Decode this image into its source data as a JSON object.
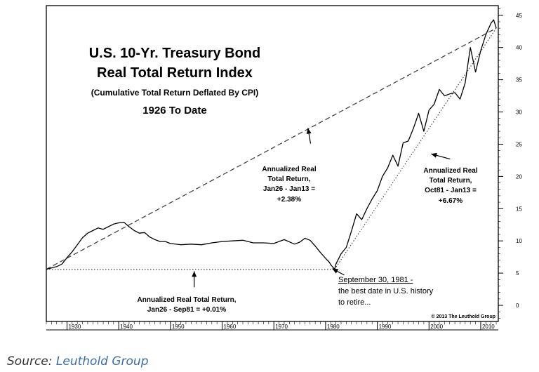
{
  "colors": {
    "line": "#000000",
    "axis": "#000000",
    "source_link": "#3a6ea8",
    "background": "#ffffff"
  },
  "chart_data": {
    "type": "line",
    "title_lines": [
      "U.S. 10-Yr. Treasury Bond",
      "Real Total Return Index"
    ],
    "subtitle": "(Cumulative Total Return Deflated By CPI)",
    "date_range": "1926 To Date",
    "x_ticks": [
      "1930",
      "1940",
      "1950",
      "1960",
      "1970",
      "1980",
      "1990",
      "2000",
      "2010"
    ],
    "x_tick_values": [
      1930,
      1940,
      1950,
      1960,
      1970,
      1980,
      1990,
      2000,
      2010
    ],
    "y_ticks": [
      "0",
      "5",
      "10",
      "15",
      "20",
      "25",
      "30",
      "35",
      "40",
      "45"
    ],
    "y_tick_values": [
      0,
      5,
      10,
      15,
      20,
      25,
      30,
      35,
      40,
      45
    ],
    "xlim": [
      1926,
      2013.4
    ],
    "ylim": [
      -2.5,
      46.5
    ],
    "grid": false,
    "series": [
      {
        "x": [
          1926,
          1927,
          1928,
          1929,
          1930,
          1931,
          1932,
          1933,
          1934,
          1935,
          1936,
          1937,
          1938,
          1939,
          1940,
          1941,
          1942,
          1943,
          1944,
          1945,
          1946,
          1947,
          1948,
          1949,
          1950,
          1952,
          1954,
          1956,
          1958,
          1960,
          1962,
          1964,
          1966,
          1968,
          1970,
          1972,
          1974,
          1975,
          1976,
          1977,
          1978,
          1979,
          1980,
          1980.7,
          1981,
          1981.75,
          1982,
          1983,
          1984,
          1985,
          1986,
          1987,
          1988,
          1989,
          1990,
          1991,
          1992,
          1993,
          1994,
          1995,
          1996,
          1997,
          1998,
          1999,
          2000,
          2001,
          2002,
          2003,
          2004,
          2005,
          2006,
          2007,
          2008,
          2009,
          2010,
          2011,
          2012,
          2012.5,
          2013
        ],
        "y": [
          5.6,
          5.8,
          6.0,
          6.4,
          7.4,
          8.3,
          9.4,
          10.5,
          11.2,
          11.6,
          12.0,
          11.8,
          12.2,
          12.6,
          12.8,
          12.9,
          12.2,
          11.6,
          11.2,
          11.3,
          10.6,
          10.2,
          9.9,
          9.9,
          9.6,
          9.4,
          9.5,
          9.4,
          9.7,
          9.9,
          10.0,
          10.1,
          9.7,
          9.7,
          9.6,
          10.2,
          9.5,
          9.8,
          10.4,
          10.1,
          9.2,
          8.2,
          7.3,
          6.7,
          6.3,
          5.6,
          6.4,
          8.0,
          9.0,
          11.5,
          14.2,
          13.3,
          15.0,
          16.5,
          17.8,
          20.0,
          21.3,
          23.3,
          21.6,
          25.2,
          25.5,
          27.5,
          29.8,
          27.0,
          30.3,
          31.2,
          33.5,
          32.5,
          32.8,
          33.0,
          32.0,
          34.5,
          40.0,
          36.2,
          39.5,
          42.0,
          43.8,
          44.3,
          43.0
        ]
      }
    ],
    "trend_lines": [
      {
        "x": [
          1926,
          2013
        ],
        "y": [
          5.6,
          43.0
        ],
        "style": "dashed"
      },
      {
        "x": [
          1926,
          1981.75
        ],
        "y": [
          5.6,
          5.6
        ],
        "style": "dotted"
      },
      {
        "x": [
          1981.75,
          2013
        ],
        "y": [
          5.6,
          43.0
        ],
        "style": "dotted"
      }
    ],
    "annotations": [
      {
        "id": "total",
        "lines": [
          "Annualized Real",
          "Total Return,",
          "Jan26 - Jan13 =",
          "+2.38%"
        ],
        "arrow": {
          "from": [
            1977.1,
            25.1
          ],
          "to": [
            1976.6,
            27.5
          ]
        }
      },
      {
        "id": "recent",
        "lines": [
          "Annualized Real",
          "Total Return,",
          "Oct81 - Jan13 =",
          "+6.67%"
        ],
        "arrow": {
          "from": [
            2004.1,
            22.7
          ],
          "to": [
            2000.4,
            23.5
          ]
        }
      },
      {
        "id": "early",
        "lines": [
          "Annualized Real Total Return,",
          "Jan26 - Sep81 = +0.01%"
        ],
        "arrow": {
          "from": [
            1954.6,
            2.8
          ],
          "to": [
            1954.6,
            5.3
          ]
        }
      },
      {
        "id": "retire",
        "lines": [
          "September 30, 1981 -",
          "the best date in U.S. history",
          "to retire..."
        ],
        "arrow": {
          "from": [
            1983.6,
            4.7
          ],
          "to": [
            1981.3,
            5.7
          ]
        }
      }
    ],
    "copyright": "© 2013 The Leuthold Group"
  },
  "source": {
    "label": "Source:",
    "link_text": "Leuthold Group"
  }
}
